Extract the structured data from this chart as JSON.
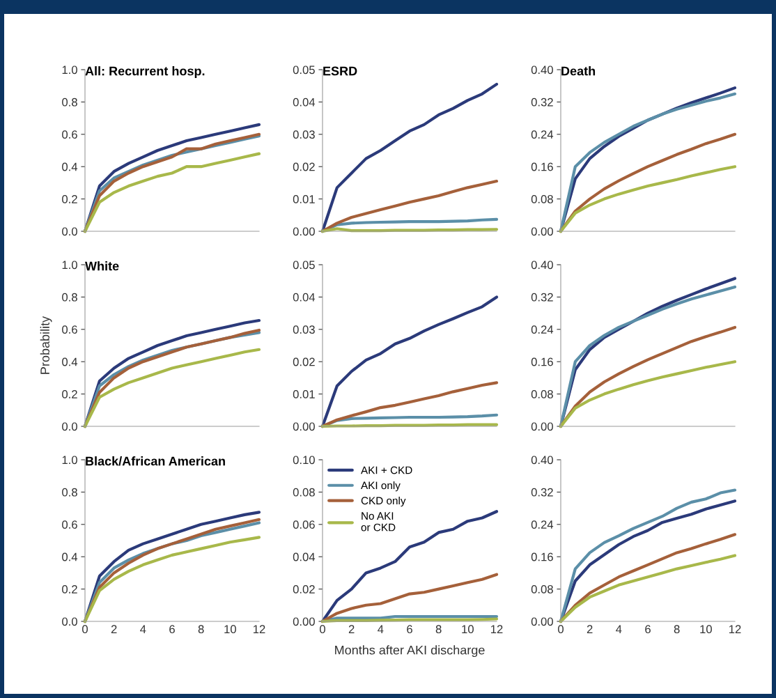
{
  "chart_data": [
    {
      "type": "line",
      "title": "All: Recurrent hosp.",
      "x": [
        0,
        1,
        2,
        3,
        4,
        5,
        6,
        7,
        8,
        9,
        10,
        11,
        12
      ],
      "xlim": [
        0,
        12
      ],
      "xticks": [
        0,
        2,
        4,
        6,
        8,
        10,
        12
      ],
      "ylim": [
        0,
        1.0
      ],
      "yticks": [
        {
          "value": 0,
          "label": "0.0"
        },
        {
          "value": 0.2,
          "label": "0.2"
        },
        {
          "value": 0.4,
          "label": "0.4"
        },
        {
          "value": 0.6,
          "label": "0.6"
        },
        {
          "value": 0.8,
          "label": "0.8"
        },
        {
          "value": 1.0,
          "label": "1.0"
        }
      ],
      "tick_labels": "y",
      "grid": false,
      "legend": false,
      "series": [
        {
          "color": "#2b3a7a",
          "values": [
            0,
            0.28,
            0.37,
            0.42,
            0.46,
            0.5,
            0.53,
            0.56,
            0.58,
            0.6,
            0.62,
            0.64,
            0.66
          ]
        },
        {
          "color": "#5b8fa8",
          "values": [
            0,
            0.25,
            0.33,
            0.37,
            0.41,
            0.44,
            0.47,
            0.49,
            0.51,
            0.53,
            0.55,
            0.57,
            0.59
          ]
        },
        {
          "color": "#a5603a",
          "values": [
            0,
            0.22,
            0.31,
            0.36,
            0.4,
            0.43,
            0.46,
            0.51,
            0.51,
            0.54,
            0.56,
            0.58,
            0.6
          ]
        },
        {
          "color": "#a8b84a",
          "values": [
            0,
            0.18,
            0.24,
            0.28,
            0.31,
            0.34,
            0.36,
            0.4,
            0.4,
            0.42,
            0.44,
            0.46,
            0.48
          ]
        }
      ]
    },
    {
      "type": "line",
      "title": "ESRD",
      "x": [
        0,
        1,
        2,
        3,
        4,
        5,
        6,
        7,
        8,
        9,
        10,
        11,
        12
      ],
      "xlim": [
        0,
        12
      ],
      "xticks": [
        0,
        2,
        4,
        6,
        8,
        10,
        12
      ],
      "ylim": [
        0,
        0.05
      ],
      "yticks": [
        {
          "value": 0,
          "label": "0.00"
        },
        {
          "value": 0.01,
          "label": "0.01"
        },
        {
          "value": 0.02,
          "label": "0.02"
        },
        {
          "value": 0.03,
          "label": "0.03"
        },
        {
          "value": 0.04,
          "label": "0.04"
        },
        {
          "value": 0.05,
          "label": "0.05"
        }
      ],
      "tick_labels": "y",
      "grid": false,
      "legend": false,
      "series": [
        {
          "color": "#2b3a7a",
          "values": [
            0,
            0.0135,
            0.018,
            0.0225,
            0.025,
            0.028,
            0.031,
            0.033,
            0.036,
            0.038,
            0.0405,
            0.0425,
            0.0455
          ]
        },
        {
          "color": "#5b8fa8",
          "values": [
            0,
            0.002,
            0.0025,
            0.0027,
            0.0028,
            0.0029,
            0.003,
            0.003,
            0.003,
            0.0031,
            0.0032,
            0.0035,
            0.0037
          ]
        },
        {
          "color": "#a5603a",
          "values": [
            0,
            0.0025,
            0.0043,
            0.0055,
            0.0067,
            0.0078,
            0.009,
            0.01,
            0.011,
            0.0123,
            0.0135,
            0.0145,
            0.0155
          ]
        },
        {
          "color": "#a8b84a",
          "values": [
            0,
            0.0008,
            0.0002,
            0.0002,
            0.0002,
            0.0003,
            0.0003,
            0.0003,
            0.0004,
            0.0004,
            0.0005,
            0.0005,
            0.0006
          ]
        }
      ]
    },
    {
      "type": "line",
      "title": "Death",
      "x": [
        0,
        1,
        2,
        3,
        4,
        5,
        6,
        7,
        8,
        9,
        10,
        11,
        12
      ],
      "xlim": [
        0,
        12
      ],
      "xticks": [
        0,
        2,
        4,
        6,
        8,
        10,
        12
      ],
      "ylim": [
        0,
        0.4
      ],
      "yticks": [
        {
          "value": 0,
          "label": "0.00"
        },
        {
          "value": 0.08,
          "label": "0.08"
        },
        {
          "value": 0.16,
          "label": "0.16"
        },
        {
          "value": 0.24,
          "label": "0.24"
        },
        {
          "value": 0.32,
          "label": "0.32"
        },
        {
          "value": 0.4,
          "label": "0.40"
        }
      ],
      "tick_labels": "y",
      "grid": false,
      "legend": false,
      "series": [
        {
          "color": "#2b3a7a",
          "values": [
            0,
            0.13,
            0.18,
            0.21,
            0.235,
            0.255,
            0.275,
            0.29,
            0.305,
            0.318,
            0.33,
            0.342,
            0.355
          ]
        },
        {
          "color": "#5b8fa8",
          "values": [
            0,
            0.16,
            0.195,
            0.22,
            0.24,
            0.26,
            0.275,
            0.29,
            0.302,
            0.312,
            0.322,
            0.33,
            0.34
          ]
        },
        {
          "color": "#a5603a",
          "values": [
            0,
            0.05,
            0.08,
            0.105,
            0.125,
            0.143,
            0.16,
            0.175,
            0.19,
            0.203,
            0.217,
            0.228,
            0.24
          ]
        },
        {
          "color": "#a8b84a",
          "values": [
            0,
            0.045,
            0.065,
            0.08,
            0.092,
            0.102,
            0.112,
            0.12,
            0.128,
            0.137,
            0.145,
            0.153,
            0.16
          ]
        }
      ]
    },
    {
      "type": "line",
      "title": "White",
      "ylabel": "Probability",
      "x": [
        0,
        1,
        2,
        3,
        4,
        5,
        6,
        7,
        8,
        9,
        10,
        11,
        12
      ],
      "xlim": [
        0,
        12
      ],
      "xticks": [
        0,
        2,
        4,
        6,
        8,
        10,
        12
      ],
      "ylim": [
        0,
        1.0
      ],
      "yticks": [
        {
          "value": 0,
          "label": "0.0"
        },
        {
          "value": 0.2,
          "label": "0.2"
        },
        {
          "value": 0.4,
          "label": "0.4"
        },
        {
          "value": 0.6,
          "label": "0.6"
        },
        {
          "value": 0.8,
          "label": "0.8"
        },
        {
          "value": 1.0,
          "label": "1.0"
        }
      ],
      "tick_labels": "y",
      "grid": false,
      "legend": false,
      "series": [
        {
          "color": "#2b3a7a",
          "values": [
            0,
            0.28,
            0.36,
            0.42,
            0.46,
            0.5,
            0.53,
            0.56,
            0.58,
            0.6,
            0.62,
            0.64,
            0.655
          ]
        },
        {
          "color": "#5b8fa8",
          "values": [
            0,
            0.25,
            0.32,
            0.37,
            0.41,
            0.44,
            0.47,
            0.49,
            0.51,
            0.53,
            0.55,
            0.565,
            0.58
          ]
        },
        {
          "color": "#a5603a",
          "values": [
            0,
            0.21,
            0.3,
            0.36,
            0.4,
            0.43,
            0.46,
            0.49,
            0.51,
            0.53,
            0.55,
            0.575,
            0.595
          ]
        },
        {
          "color": "#a8b84a",
          "values": [
            0,
            0.18,
            0.23,
            0.27,
            0.3,
            0.33,
            0.36,
            0.38,
            0.4,
            0.42,
            0.44,
            0.46,
            0.475
          ]
        }
      ]
    },
    {
      "type": "line",
      "x": [
        0,
        1,
        2,
        3,
        4,
        5,
        6,
        7,
        8,
        9,
        10,
        11,
        12
      ],
      "xlim": [
        0,
        12
      ],
      "xticks": [
        0,
        2,
        4,
        6,
        8,
        10,
        12
      ],
      "ylim": [
        0,
        0.05
      ],
      "yticks": [
        {
          "value": 0,
          "label": "0.00"
        },
        {
          "value": 0.01,
          "label": "0.01"
        },
        {
          "value": 0.02,
          "label": "0.02"
        },
        {
          "value": 0.03,
          "label": "0.03"
        },
        {
          "value": 0.04,
          "label": "0.04"
        },
        {
          "value": 0.05,
          "label": "0.05"
        }
      ],
      "tick_labels": "y",
      "grid": false,
      "legend": false,
      "series": [
        {
          "color": "#2b3a7a",
          "values": [
            0,
            0.0125,
            0.017,
            0.0205,
            0.0225,
            0.0255,
            0.0272,
            0.0295,
            0.0315,
            0.0333,
            0.0352,
            0.037,
            0.04
          ]
        },
        {
          "color": "#5b8fa8",
          "values": [
            0,
            0.0018,
            0.0024,
            0.0025,
            0.0026,
            0.0027,
            0.0028,
            0.0028,
            0.0028,
            0.0029,
            0.003,
            0.0032,
            0.0035
          ]
        },
        {
          "color": "#a5603a",
          "values": [
            0,
            0.002,
            0.0033,
            0.0045,
            0.0058,
            0.0065,
            0.0075,
            0.0085,
            0.0095,
            0.0107,
            0.0117,
            0.0127,
            0.0135
          ]
        },
        {
          "color": "#a8b84a",
          "values": [
            0,
            0.0001,
            0.0001,
            0.0002,
            0.0002,
            0.0003,
            0.0003,
            0.0003,
            0.0004,
            0.0004,
            0.0005,
            0.0005,
            0.0005
          ]
        }
      ]
    },
    {
      "type": "line",
      "x": [
        0,
        1,
        2,
        3,
        4,
        5,
        6,
        7,
        8,
        9,
        10,
        11,
        12
      ],
      "xlim": [
        0,
        12
      ],
      "xticks": [
        0,
        2,
        4,
        6,
        8,
        10,
        12
      ],
      "ylim": [
        0,
        0.4
      ],
      "yticks": [
        {
          "value": 0,
          "label": "0.00"
        },
        {
          "value": 0.08,
          "label": "0.08"
        },
        {
          "value": 0.16,
          "label": "0.16"
        },
        {
          "value": 0.24,
          "label": "0.24"
        },
        {
          "value": 0.32,
          "label": "0.32"
        },
        {
          "value": 0.4,
          "label": "0.40"
        }
      ],
      "tick_labels": "y",
      "grid": false,
      "legend": false,
      "series": [
        {
          "color": "#2b3a7a",
          "values": [
            0,
            0.14,
            0.19,
            0.22,
            0.24,
            0.26,
            0.28,
            0.297,
            0.312,
            0.326,
            0.34,
            0.353,
            0.366
          ]
        },
        {
          "color": "#5b8fa8",
          "values": [
            0,
            0.16,
            0.2,
            0.225,
            0.245,
            0.26,
            0.275,
            0.29,
            0.303,
            0.315,
            0.325,
            0.335,
            0.345
          ]
        },
        {
          "color": "#a5603a",
          "values": [
            0,
            0.05,
            0.085,
            0.11,
            0.13,
            0.148,
            0.165,
            0.18,
            0.195,
            0.21,
            0.222,
            0.233,
            0.245
          ]
        },
        {
          "color": "#a8b84a",
          "values": [
            0,
            0.045,
            0.065,
            0.08,
            0.092,
            0.103,
            0.113,
            0.122,
            0.13,
            0.138,
            0.146,
            0.153,
            0.16
          ]
        }
      ]
    },
    {
      "type": "line",
      "title": "Black/African American",
      "x": [
        0,
        1,
        2,
        3,
        4,
        5,
        6,
        7,
        8,
        9,
        10,
        11,
        12
      ],
      "xlim": [
        0,
        12
      ],
      "xticks": [
        0,
        2,
        4,
        6,
        8,
        10,
        12
      ],
      "ylim": [
        0,
        1.0
      ],
      "yticks": [
        {
          "value": 0,
          "label": "0.0"
        },
        {
          "value": 0.2,
          "label": "0.2"
        },
        {
          "value": 0.4,
          "label": "0.4"
        },
        {
          "value": 0.6,
          "label": "0.6"
        },
        {
          "value": 0.8,
          "label": "0.8"
        },
        {
          "value": 1.0,
          "label": "1.0"
        }
      ],
      "grid": false,
      "legend": false,
      "series": [
        {
          "color": "#2b3a7a",
          "values": [
            0,
            0.28,
            0.37,
            0.44,
            0.48,
            0.51,
            0.54,
            0.57,
            0.6,
            0.62,
            0.64,
            0.66,
            0.675
          ]
        },
        {
          "color": "#5b8fa8",
          "values": [
            0,
            0.24,
            0.33,
            0.38,
            0.42,
            0.45,
            0.48,
            0.5,
            0.53,
            0.55,
            0.57,
            0.59,
            0.61
          ]
        },
        {
          "color": "#a5603a",
          "values": [
            0,
            0.21,
            0.3,
            0.36,
            0.41,
            0.45,
            0.48,
            0.51,
            0.54,
            0.57,
            0.59,
            0.61,
            0.63
          ]
        },
        {
          "color": "#a8b84a",
          "values": [
            0,
            0.19,
            0.26,
            0.31,
            0.35,
            0.38,
            0.41,
            0.43,
            0.45,
            0.47,
            0.49,
            0.505,
            0.52
          ]
        }
      ]
    },
    {
      "type": "line",
      "xlabel": "Months after AKI discharge",
      "x": [
        0,
        1,
        2,
        3,
        4,
        5,
        6,
        7,
        8,
        9,
        10,
        11,
        12
      ],
      "xlim": [
        0,
        12
      ],
      "xticks": [
        0,
        2,
        4,
        6,
        8,
        10,
        12
      ],
      "ylim": [
        0,
        0.1
      ],
      "yticks": [
        {
          "value": 0,
          "label": "0.00"
        },
        {
          "value": 0.02,
          "label": "0.02"
        },
        {
          "value": 0.04,
          "label": "0.04"
        },
        {
          "value": 0.06,
          "label": "0.06"
        },
        {
          "value": 0.08,
          "label": "0.08"
        },
        {
          "value": 0.1,
          "label": "0.10"
        }
      ],
      "grid": false,
      "legend": "top left",
      "series": [
        {
          "name": "AKI + CKD",
          "color": "#2b3a7a",
          "values": [
            0,
            0.013,
            0.02,
            0.03,
            0.033,
            0.037,
            0.046,
            0.049,
            0.055,
            0.057,
            0.062,
            0.064,
            0.068
          ]
        },
        {
          "name": "AKI only",
          "color": "#5b8fa8",
          "values": [
            0,
            0.002,
            0.002,
            0.002,
            0.002,
            0.003,
            0.003,
            0.003,
            0.003,
            0.003,
            0.003,
            0.003,
            0.003
          ]
        },
        {
          "name": "CKD only",
          "color": "#a5603a",
          "values": [
            0,
            0.005,
            0.008,
            0.01,
            0.011,
            0.014,
            0.017,
            0.018,
            0.02,
            0.022,
            0.024,
            0.026,
            0.029
          ]
        },
        {
          "name": "No AKI\nor CKD",
          "color": "#a8b84a",
          "values": [
            0,
            0.0005,
            0.0005,
            0.0005,
            0.0007,
            0.0008,
            0.001,
            0.001,
            0.001,
            0.001,
            0.001,
            0.0012,
            0.0015
          ]
        }
      ]
    },
    {
      "type": "line",
      "x": [
        0,
        1,
        2,
        3,
        4,
        5,
        6,
        7,
        8,
        9,
        10,
        11,
        12
      ],
      "xlim": [
        0,
        12
      ],
      "xticks": [
        0,
        2,
        4,
        6,
        8,
        10,
        12
      ],
      "ylim": [
        0,
        0.4
      ],
      "yticks": [
        {
          "value": 0,
          "label": "0.00"
        },
        {
          "value": 0.08,
          "label": "0.08"
        },
        {
          "value": 0.16,
          "label": "0.16"
        },
        {
          "value": 0.24,
          "label": "0.24"
        },
        {
          "value": 0.32,
          "label": "0.32"
        },
        {
          "value": 0.4,
          "label": "0.40"
        }
      ],
      "grid": false,
      "legend": false,
      "series": [
        {
          "color": "#2b3a7a",
          "values": [
            0,
            0.1,
            0.14,
            0.165,
            0.19,
            0.21,
            0.225,
            0.245,
            0.255,
            0.265,
            0.278,
            0.288,
            0.298
          ]
        },
        {
          "color": "#5b8fa8",
          "values": [
            0,
            0.13,
            0.17,
            0.195,
            0.212,
            0.23,
            0.245,
            0.26,
            0.28,
            0.295,
            0.303,
            0.318,
            0.325
          ]
        },
        {
          "color": "#a5603a",
          "values": [
            0,
            0.04,
            0.07,
            0.09,
            0.11,
            0.125,
            0.14,
            0.155,
            0.17,
            0.18,
            0.192,
            0.203,
            0.215
          ]
        },
        {
          "color": "#a8b84a",
          "values": [
            0,
            0.035,
            0.06,
            0.075,
            0.09,
            0.1,
            0.11,
            0.12,
            0.13,
            0.138,
            0.146,
            0.154,
            0.163
          ]
        }
      ]
    }
  ]
}
